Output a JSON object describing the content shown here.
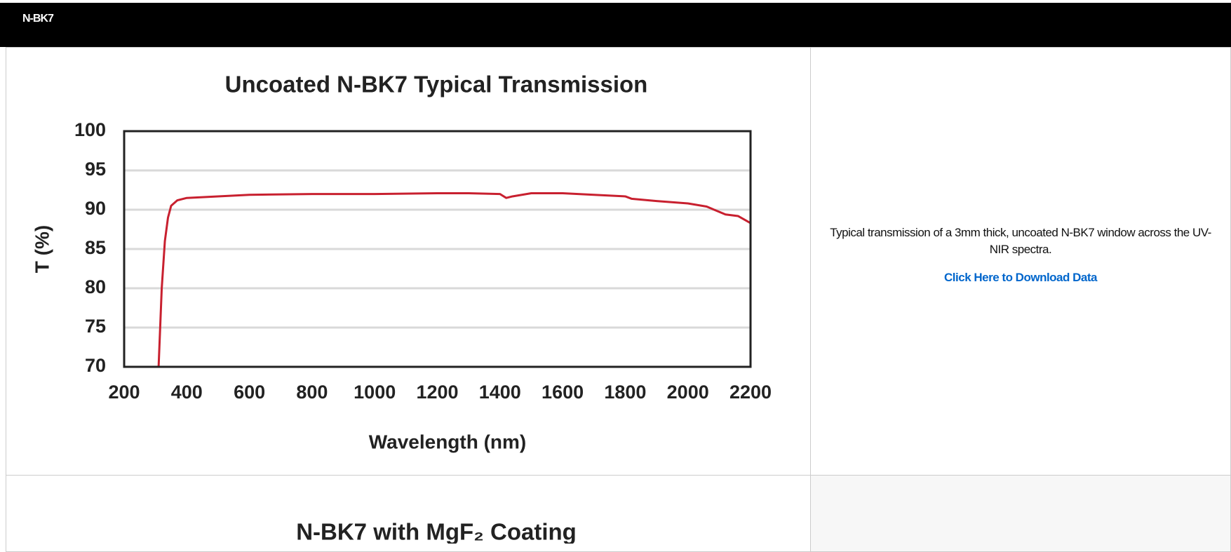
{
  "header": {
    "title": "N-BK7"
  },
  "chart_data": {
    "type": "line",
    "title": "Uncoated N-BK7 Typical Transmission",
    "xlabel": "Wavelength (nm)",
    "ylabel": "T (%)",
    "x": [
      310,
      320,
      330,
      340,
      350,
      370,
      400,
      500,
      600,
      800,
      1000,
      1200,
      1300,
      1400,
      1420,
      1440,
      1500,
      1600,
      1700,
      1800,
      1820,
      1900,
      2000,
      2060,
      2120,
      2160,
      2200
    ],
    "series": [
      {
        "color": "#c8202f",
        "values": [
          70,
          80,
          86,
          89,
          90.5,
          91.2,
          91.5,
          91.7,
          91.9,
          92,
          92,
          92.1,
          92.1,
          92,
          91.5,
          91.7,
          92.1,
          92.1,
          91.9,
          91.7,
          91.4,
          91.1,
          90.8,
          90.4,
          89.4,
          89.2,
          88.3
        ]
      }
    ],
    "xlim": [
      200,
      2200
    ],
    "xticks": [
      200,
      400,
      600,
      800,
      1000,
      1200,
      1400,
      1600,
      1800,
      2000,
      2200
    ],
    "ylim": [
      70,
      100
    ],
    "yticks": [
      70,
      75,
      80,
      85,
      90,
      95,
      100
    ],
    "grid": true
  },
  "description": "Typical transmission of a 3mm thick, uncoated N-BK7 window across the UV- NIR spectra.",
  "link": "Click Here to Download Data",
  "second_chart": {
    "title": "N-BK7 with MgF₂ Coating"
  }
}
